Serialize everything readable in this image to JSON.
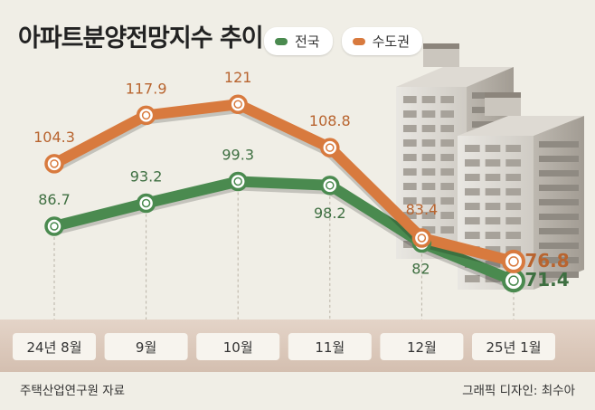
{
  "title": "아파트분양전망지수 추이",
  "source": "주택산업연구원 자료",
  "credit": "그래픽 디자인: 최수아",
  "colors": {
    "national": "#4a8a4f",
    "capital": "#d87a3e",
    "national_label": "#3e6f41",
    "capital_label": "#b8642f",
    "background": "#f0eee6",
    "axis_band": "#d9c6b8"
  },
  "chart_data": {
    "type": "line",
    "categories": [
      "24년 8월",
      "9월",
      "10월",
      "11월",
      "12월",
      "25년 1월"
    ],
    "series": [
      {
        "name": "수도권",
        "values": [
          104.3,
          117.9,
          121,
          108.8,
          83.4,
          76.8
        ]
      },
      {
        "name": "전국",
        "values": [
          86.7,
          93.2,
          99.3,
          98.2,
          82,
          71.4
        ]
      }
    ],
    "legend": "top-center",
    "grid": false
  }
}
